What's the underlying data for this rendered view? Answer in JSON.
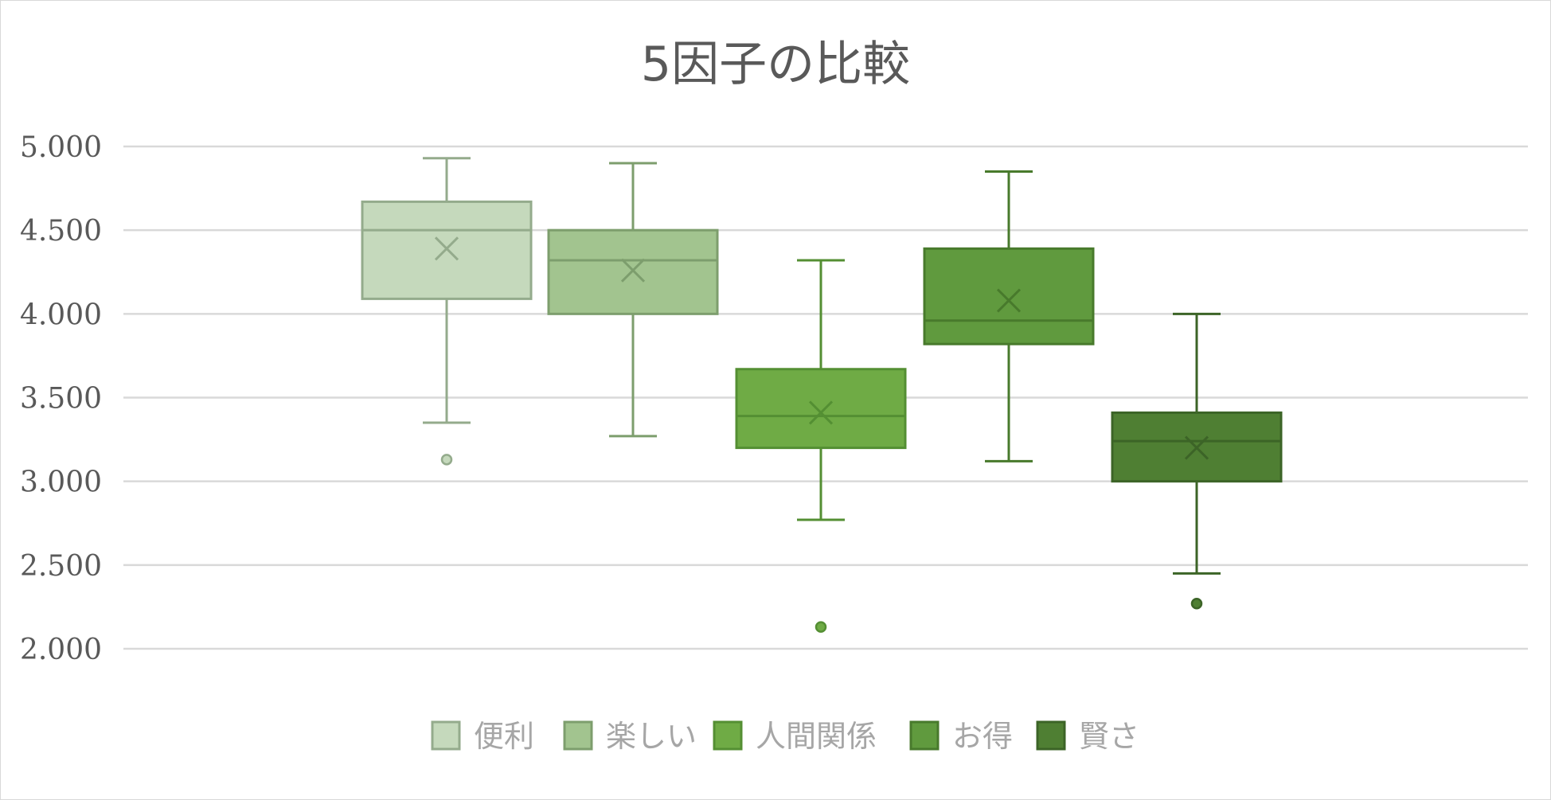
{
  "chart_data": {
    "type": "box",
    "title": "5因子の比較",
    "xlabel": "",
    "ylabel": "",
    "ylim": [
      2.0,
      5.0
    ],
    "yticks": [
      "5.000",
      "4.500",
      "4.000",
      "3.500",
      "3.000",
      "2.500",
      "2.000"
    ],
    "ytick_values": [
      5.0,
      4.5,
      4.0,
      3.5,
      3.0,
      2.5,
      2.0
    ],
    "grid": true,
    "legend_position": "bottom",
    "series": [
      {
        "name": "便利",
        "min": 3.35,
        "q1": 4.09,
        "median": 4.5,
        "q3": 4.67,
        "max": 4.93,
        "mean": 4.39,
        "outliers": [
          3.13
        ],
        "fill": "#c5d9bc",
        "stroke": "#94ab8c"
      },
      {
        "name": "楽しい",
        "min": 3.27,
        "q1": 4.0,
        "median": 4.32,
        "q3": 4.5,
        "max": 4.9,
        "mean": 4.26,
        "outliers": [],
        "fill": "#a2c48f",
        "stroke": "#7d9e6d"
      },
      {
        "name": "人間関係",
        "min": 2.77,
        "q1": 3.2,
        "median": 3.39,
        "q3": 3.67,
        "max": 4.32,
        "mean": 3.41,
        "outliers": [
          2.13
        ],
        "fill": "#6fab45",
        "stroke": "#548f33"
      },
      {
        "name": "お得",
        "min": 3.12,
        "q1": 3.82,
        "median": 3.96,
        "q3": 4.39,
        "max": 4.85,
        "mean": 4.08,
        "outliers": [],
        "fill": "#609a3e",
        "stroke": "#487a2c"
      },
      {
        "name": "賢さ",
        "min": 2.45,
        "q1": 3.0,
        "median": 3.24,
        "q3": 3.41,
        "max": 4.0,
        "mean": 3.2,
        "outliers": [
          2.27
        ],
        "fill": "#4f7f33",
        "stroke": "#3c6427"
      }
    ]
  }
}
